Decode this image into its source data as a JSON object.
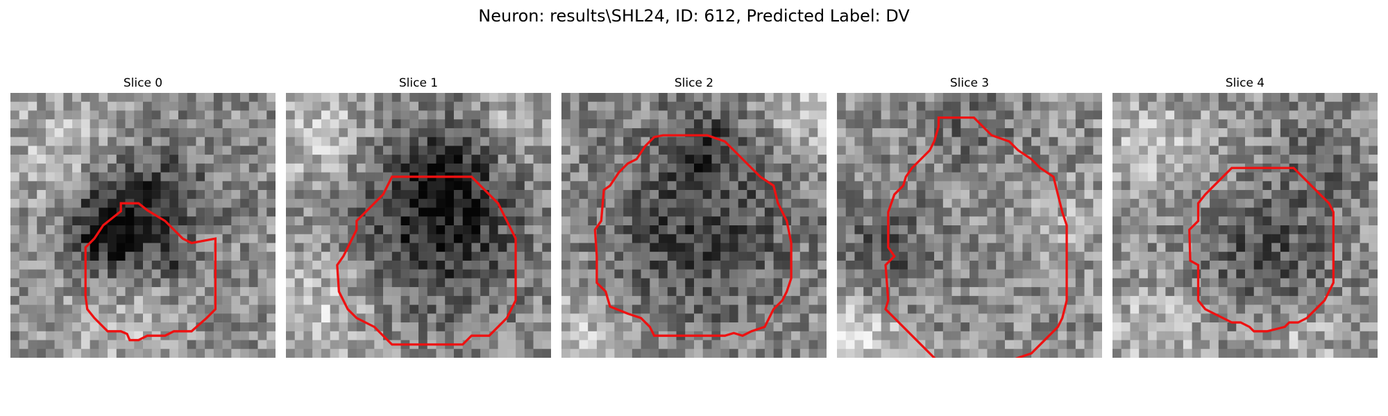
{
  "figure": {
    "suptitle": "Neuron: results\\SHL24, ID: 612, Predicted Label: DV",
    "colors": {
      "contour": "#ee1111",
      "background": "#ffffff",
      "colormap": "gray"
    },
    "panels": [
      {
        "title": "Slice 0"
      },
      {
        "title": "Slice 1"
      },
      {
        "title": "Slice 2"
      },
      {
        "title": "Slice 3"
      },
      {
        "title": "Slice 4"
      }
    ]
  }
}
